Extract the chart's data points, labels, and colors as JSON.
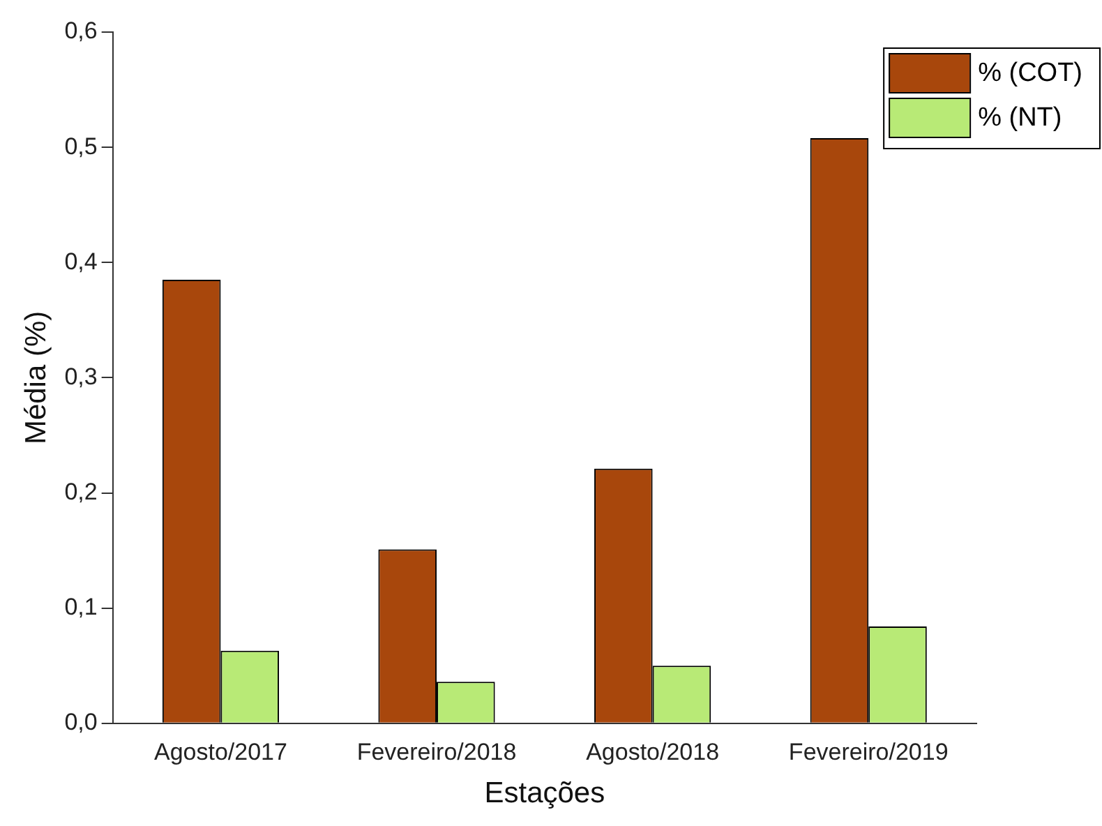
{
  "chart_data": {
    "type": "bar",
    "xlabel": "Estações",
    "ylabel": "Média (%)",
    "categories": [
      "Agosto/2017",
      "Fevereiro/2018",
      "Agosto/2018",
      "Fevereiro/2019"
    ],
    "series": [
      {
        "name": "% (COT)",
        "color": "#a8470c",
        "values": [
          0.385,
          0.151,
          0.221,
          0.508
        ]
      },
      {
        "name": "% (NT)",
        "color": "#b8ea76",
        "values": [
          0.063,
          0.036,
          0.05,
          0.084
        ]
      }
    ],
    "ylim": [
      0,
      0.6
    ],
    "yticks": [
      {
        "value": 0,
        "label": "0,0"
      },
      {
        "value": 0.1,
        "label": "0,1"
      },
      {
        "value": 0.2,
        "label": "0,2"
      },
      {
        "value": 0.3,
        "label": "0,3"
      },
      {
        "value": 0.4,
        "label": "0,4"
      },
      {
        "value": 0.5,
        "label": "0,5"
      },
      {
        "value": 0.6,
        "label": "0,6"
      }
    ],
    "grid": false,
    "legend": "top right"
  }
}
